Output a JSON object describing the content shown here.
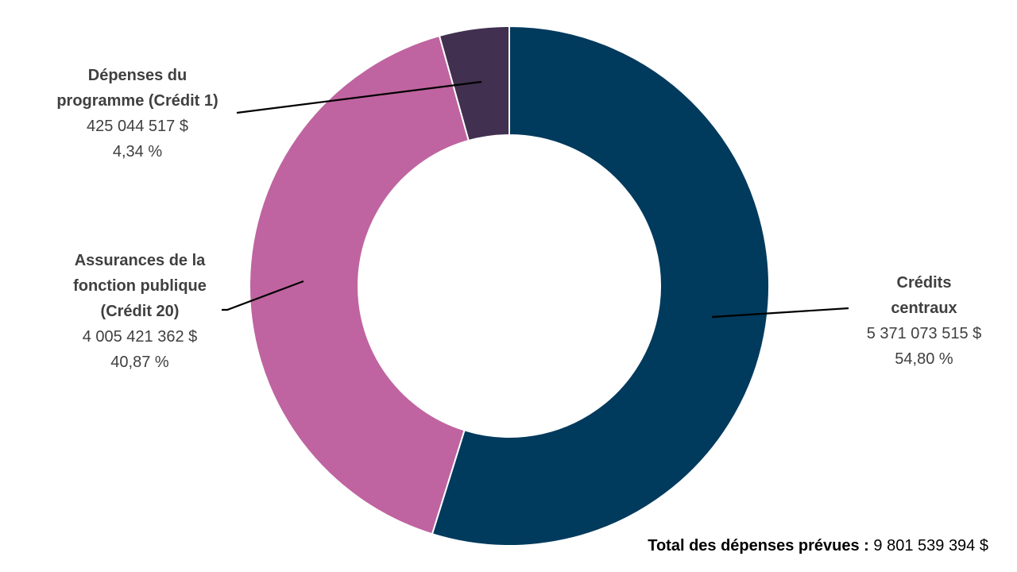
{
  "chart_data": {
    "type": "donut",
    "categories": [
      "Crédits centraux",
      "Assurances de la\nfonction publique\n(Crédit 20)",
      "Dépenses du\nprogramme (Crédit 1)"
    ],
    "values": [
      5371073515,
      4005421362,
      425044517
    ],
    "value_labels": [
      "5 371 073 515 $",
      "4 005 421 362 $",
      "425 044 517 $"
    ],
    "percents": [
      54.8,
      40.87,
      4.34
    ],
    "percent_labels": [
      "54,80 %",
      "40,87 %",
      "4,34 %"
    ],
    "colors": [
      "#003a5d",
      "#bf64a0",
      "#41304f"
    ],
    "total_label": "Total des dépenses prévues :",
    "total": 9801539394,
    "total_value_label": "9 801 539 394 $"
  }
}
